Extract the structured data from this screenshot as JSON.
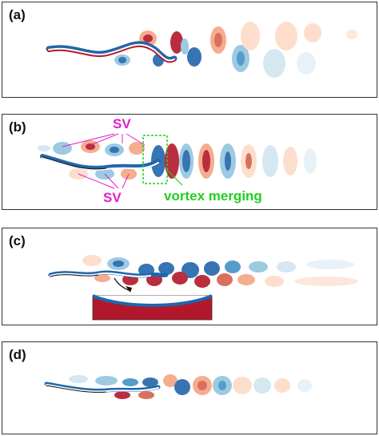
{
  "panels": [
    {
      "label": "(a)"
    },
    {
      "label": "(b)"
    },
    {
      "label": "(c)"
    },
    {
      "label": "(d)"
    }
  ],
  "annotations": {
    "sv_top": "SV",
    "sv_bottom": "SV",
    "vortex_merging": "vortex merging"
  },
  "colors": {
    "positive": "#b2182b",
    "negative": "#2166ac",
    "positive_light": "#f4a582",
    "negative_light": "#92c5de",
    "sv_label": "#e020c8",
    "merging_label": "#1fcf1f"
  }
}
